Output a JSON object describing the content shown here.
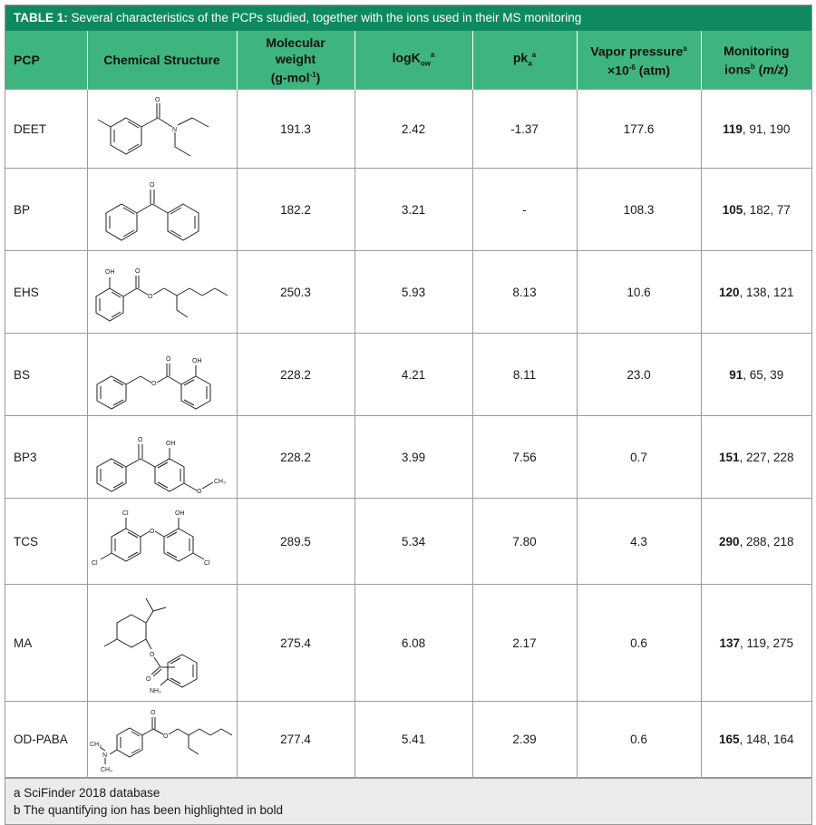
{
  "caption": {
    "label": "TABLE 1:",
    "text": " Several characteristics of the PCPs studied, together with the ions used in their MS monitoring"
  },
  "headers": {
    "pcp": "PCP",
    "structure": "Chemical Structure",
    "mw_line1": "Molecular",
    "mw_line2": "weight",
    "mw_line3_a": "(g-mol",
    "mw_line3_sup": "-1",
    "mw_line3_b": ")",
    "logk": "logK",
    "logk_sub": "ow",
    "logk_sup": "a",
    "pka": "pk",
    "pka_sub": "a",
    "pka_sup": "a",
    "vp_line1": "Vapor pressure",
    "vp_line1_sup": "a",
    "vp_line2_a": "×10",
    "vp_line2_sup": "-6",
    "vp_line2_b": " (atm)",
    "ions_line1": "Monitoring",
    "ions_line2_a": "ions",
    "ions_line2_sup": "b",
    "ions_line2_b": " (",
    "ions_line2_i": "m/z",
    "ions_line2_c": ")"
  },
  "rows": [
    {
      "pcp": "DEET",
      "mw": "191.3",
      "logk": "2.42",
      "pka": "-1.37",
      "vp": "177.6",
      "ion_bold": "119",
      "ion_rest": ", 91, 190"
    },
    {
      "pcp": "BP",
      "mw": "182.2",
      "logk": "3.21",
      "pka": "-",
      "vp": "108.3",
      "ion_bold": "105",
      "ion_rest": ", 182, 77"
    },
    {
      "pcp": "EHS",
      "mw": "250.3",
      "logk": "5.93",
      "pka": "8.13",
      "vp": "10.6",
      "ion_bold": "120",
      "ion_rest": ", 138, 121"
    },
    {
      "pcp": "BS",
      "mw": "228.2",
      "logk": "4.21",
      "pka": "8.11",
      "vp": "23.0",
      "ion_bold": "91",
      "ion_rest": ", 65, 39"
    },
    {
      "pcp": "BP3",
      "mw": "228.2",
      "logk": "3.99",
      "pka": "7.56",
      "vp": "0.7",
      "ion_bold": "151",
      "ion_rest": ", 227, 228"
    },
    {
      "pcp": "TCS",
      "mw": "289.5",
      "logk": "5.34",
      "pka": "7.80",
      "vp": "4.3",
      "ion_bold": "290",
      "ion_rest": ", 288, 218"
    },
    {
      "pcp": "MA",
      "mw": "275.4",
      "logk": "6.08",
      "pka": "2.17",
      "vp": "0.6",
      "ion_bold": "137",
      "ion_rest": ", 119, 275"
    },
    {
      "pcp": "OD-PABA",
      "mw": "277.4",
      "logk": "5.41",
      "pka": "2.39",
      "vp": "0.6",
      "ion_bold": "165",
      "ion_rest": ", 148, 164"
    }
  ],
  "structure_labels": {
    "o": "O",
    "oh": "OH",
    "cl": "Cl",
    "ch3": "CH₃",
    "nh2": "NH₂",
    "n": "N"
  },
  "footnotes": {
    "a": "a SciFinder 2018 database",
    "b": "b The quantifying ion has been highlighted in bold"
  }
}
